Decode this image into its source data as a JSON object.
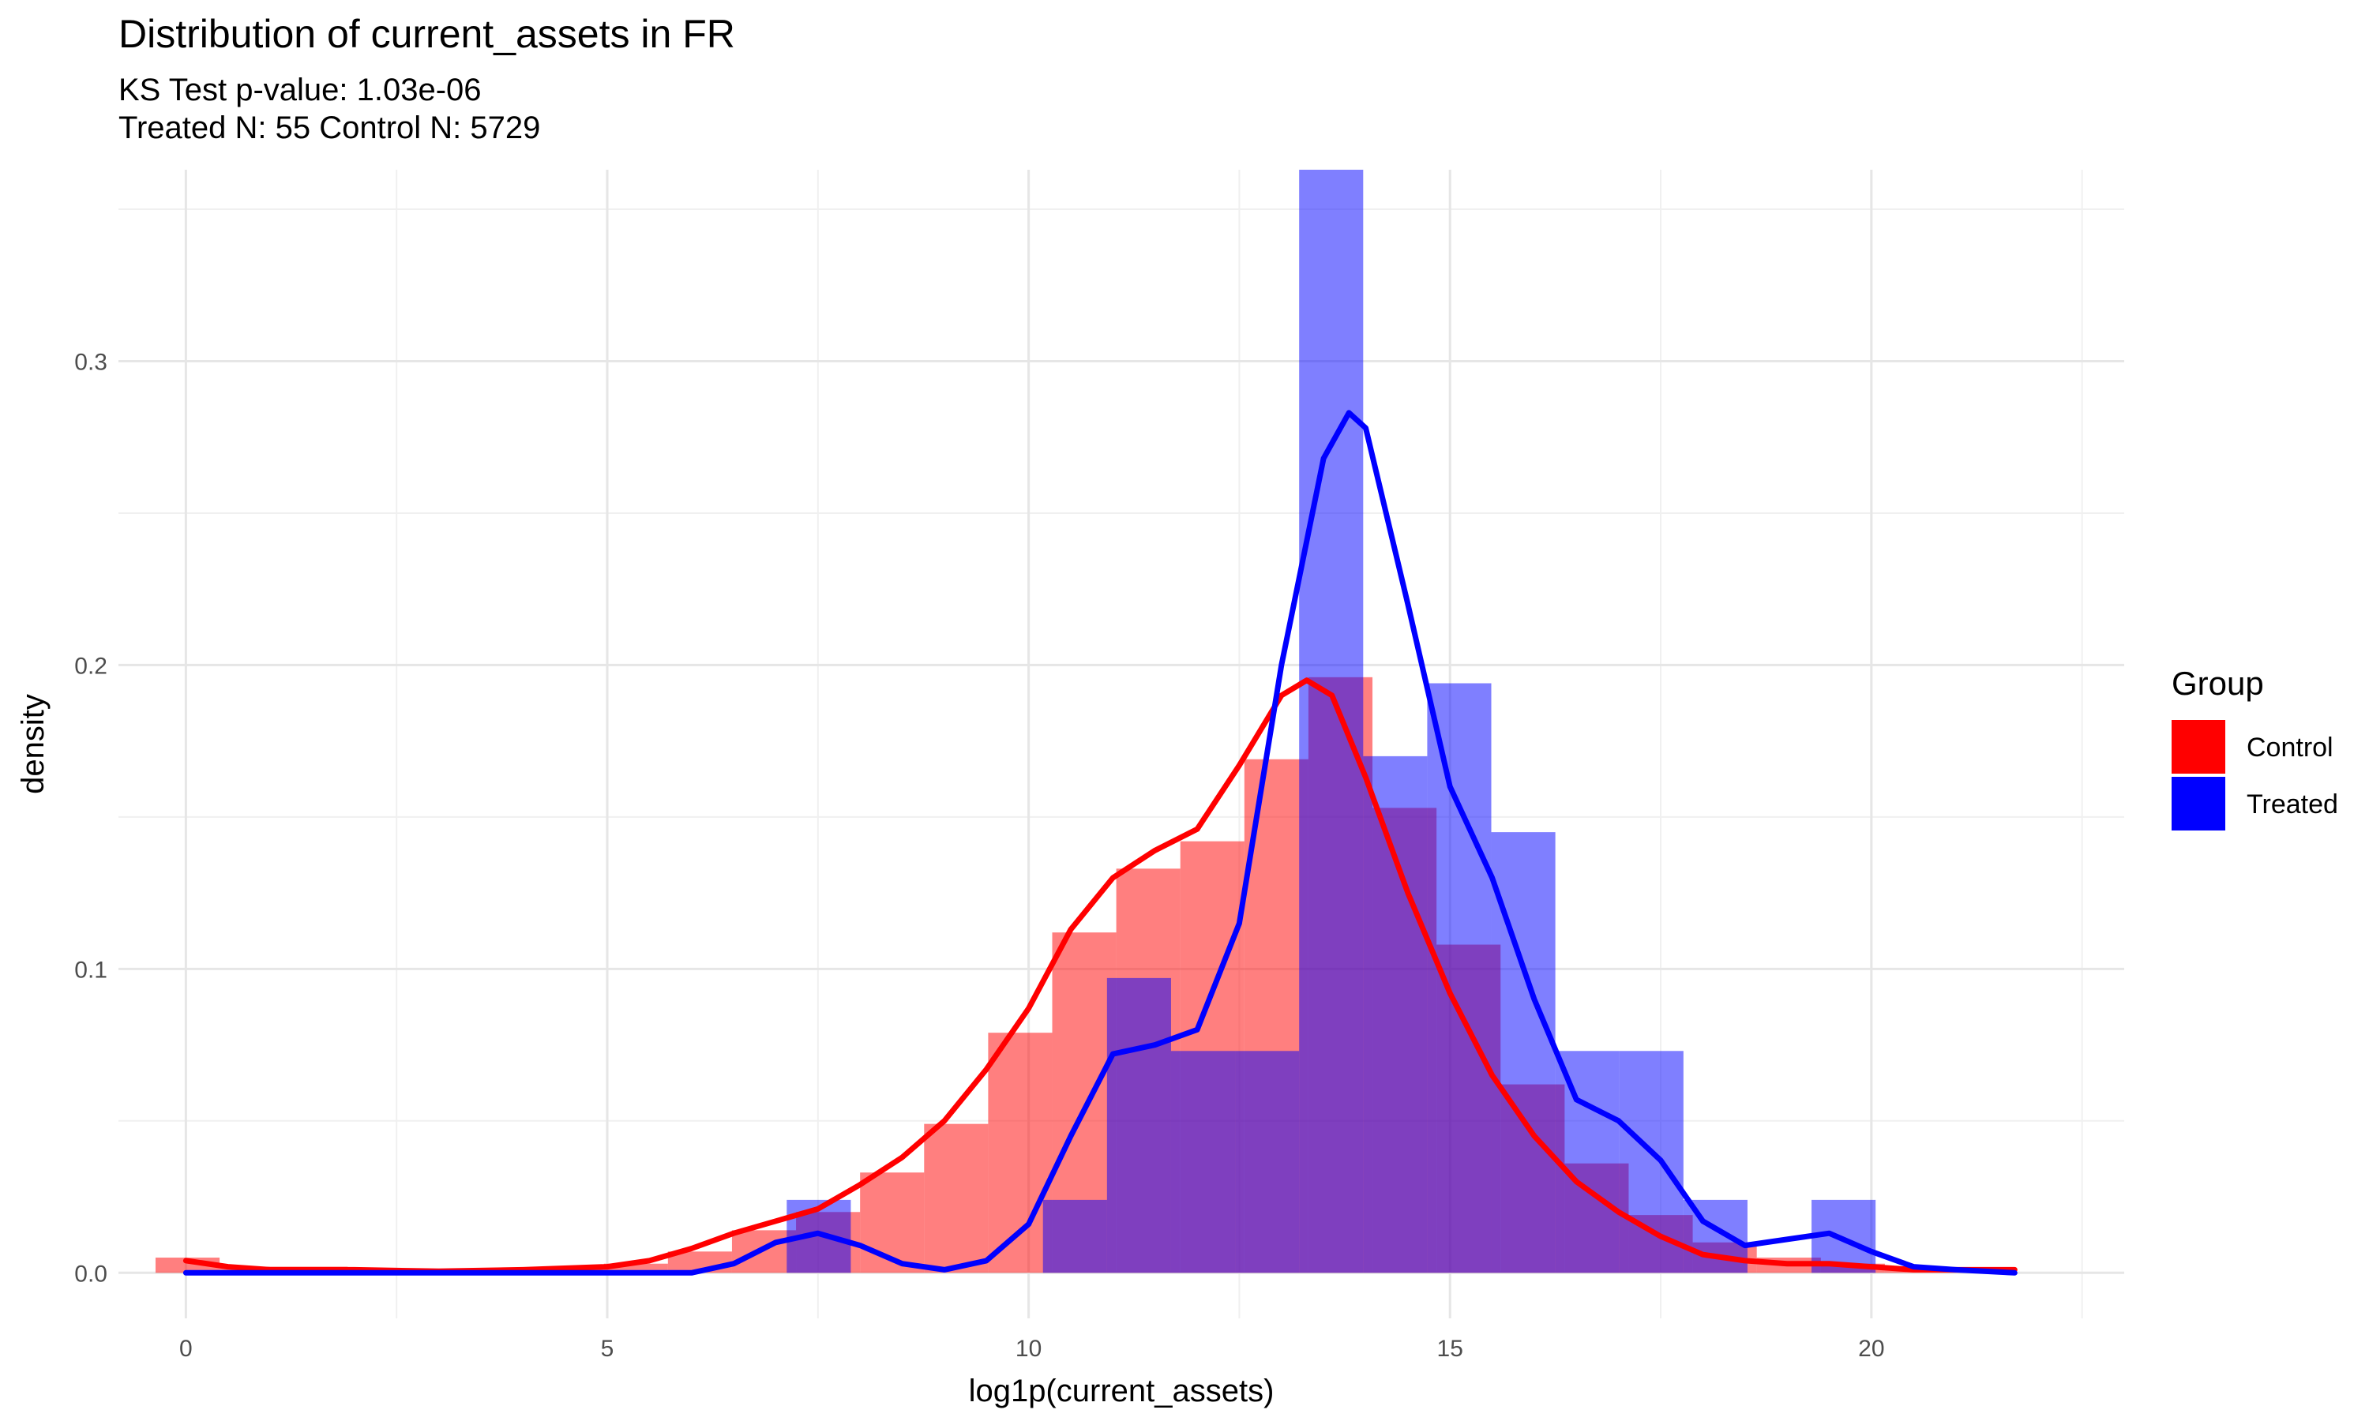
{
  "chart_data": {
    "type": "histogram",
    "title": "Distribution of current_assets in FR",
    "subtitle_lines": [
      "KS Test p-value: 1.03e-06",
      "Treated N: 55 Control N: 5729"
    ],
    "xlabel": "log1p(current_assets)",
    "ylabel": "density",
    "xlim": [
      -0.8,
      23.0
    ],
    "ylim": [
      -0.015,
      0.363
    ],
    "x_ticks": [
      0,
      5,
      10,
      15,
      20
    ],
    "y_ticks": [
      0.0,
      0.1,
      0.2,
      0.3
    ],
    "x_tick_labels": [
      "0",
      "5",
      "10",
      "15",
      "20"
    ],
    "y_tick_labels": [
      "0.0",
      "0.1",
      "0.2",
      "0.3"
    ],
    "grid": true,
    "legend": {
      "title": "Group",
      "position": "right",
      "entries": [
        {
          "label": "Control",
          "color": "#FF0000"
        },
        {
          "label": "Treated",
          "color": "#0000FF"
        }
      ]
    },
    "series": [
      {
        "name": "Control",
        "color": "#FF0000",
        "bin_edges": [
          -0.36,
          0.4,
          1.16,
          1.92,
          2.68,
          3.44,
          4.2,
          4.96,
          5.72,
          6.48,
          7.24,
          8.0,
          8.76,
          9.52,
          10.28,
          11.04,
          11.8,
          12.56,
          13.32,
          14.08,
          14.84,
          15.6,
          16.36,
          17.12,
          17.88,
          18.64,
          19.4,
          20.16,
          20.92,
          21.68
        ],
        "density": [
          0.005,
          0.002,
          0.002,
          0.001,
          0.001,
          0.001,
          0.002,
          0.003,
          0.007,
          0.014,
          0.02,
          0.033,
          0.049,
          0.079,
          0.112,
          0.133,
          0.142,
          0.169,
          0.196,
          0.153,
          0.108,
          0.062,
          0.036,
          0.019,
          0.01,
          0.005,
          0.003,
          0.002,
          0.001
        ],
        "density_curve": {
          "x": [
            0,
            0.5,
            1,
            2,
            3,
            4,
            5,
            5.5,
            6,
            6.5,
            7,
            7.5,
            8,
            8.5,
            9,
            9.5,
            10,
            10.5,
            11,
            11.5,
            12,
            12.5,
            13,
            13.3,
            13.6,
            14,
            14.5,
            15,
            15.5,
            16,
            16.5,
            17,
            17.5,
            18,
            18.5,
            19,
            19.5,
            20,
            20.5,
            21,
            21.7
          ],
          "y": [
            0.004,
            0.002,
            0.001,
            0.001,
            0.0005,
            0.001,
            0.002,
            0.004,
            0.008,
            0.013,
            0.017,
            0.021,
            0.029,
            0.038,
            0.05,
            0.067,
            0.087,
            0.113,
            0.13,
            0.139,
            0.146,
            0.167,
            0.19,
            0.195,
            0.19,
            0.163,
            0.125,
            0.092,
            0.065,
            0.045,
            0.03,
            0.02,
            0.012,
            0.006,
            0.004,
            0.003,
            0.003,
            0.002,
            0.001,
            0.001,
            0.001
          ]
        }
      },
      {
        "name": "Treated",
        "color": "#0000FF",
        "bin_edges": [
          7.13,
          7.89,
          8.65,
          9.41,
          10.17,
          10.93,
          11.69,
          12.45,
          13.21,
          13.97,
          14.73,
          15.49,
          16.25,
          17.01,
          17.77,
          18.53,
          19.29,
          20.05
        ],
        "density": [
          0.024,
          0.0,
          0.0,
          0.0,
          0.024,
          0.097,
          0.073,
          0.073,
          0.363,
          0.17,
          0.194,
          0.145,
          0.073,
          0.073,
          0.024,
          0.0,
          0.024
        ],
        "density_curve": {
          "x": [
            0,
            6,
            6.5,
            7,
            7.5,
            8,
            8.5,
            9,
            9.5,
            10,
            10.5,
            11,
            11.5,
            12,
            12.5,
            13,
            13.5,
            13.8,
            14,
            14.5,
            15,
            15.5,
            16,
            16.5,
            17,
            17.5,
            18,
            18.5,
            19,
            19.5,
            20,
            20.5,
            21,
            21.7
          ],
          "y": [
            0.0,
            0.0,
            0.003,
            0.01,
            0.013,
            0.009,
            0.003,
            0.001,
            0.004,
            0.016,
            0.045,
            0.072,
            0.075,
            0.08,
            0.115,
            0.2,
            0.268,
            0.283,
            0.278,
            0.22,
            0.16,
            0.13,
            0.09,
            0.057,
            0.05,
            0.037,
            0.017,
            0.009,
            0.011,
            0.013,
            0.007,
            0.002,
            0.001,
            0.0
          ]
        }
      }
    ]
  }
}
